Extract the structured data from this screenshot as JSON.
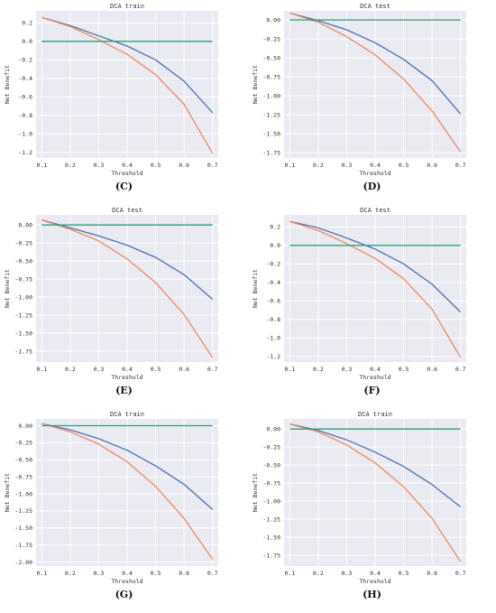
{
  "colors": {
    "bg": "#EAEAF2",
    "grid": "#FFFFFF",
    "model_a": "#4C72B0",
    "model_b": "#EE8A5E",
    "none": "#2CA078",
    "text": "#333333"
  },
  "panels": [
    {
      "label": "(C)"
    },
    {
      "label": "(D)"
    },
    {
      "label": "(E)"
    },
    {
      "label": "(F)"
    },
    {
      "label": "(G)"
    },
    {
      "label": "(H)"
    }
  ],
  "chart_data": [
    {
      "type": "line",
      "title": "DCA train",
      "xlabel": "Threshold",
      "ylabel": "Net Benefit",
      "xlim": [
        0.08,
        0.72
      ],
      "ylim": [
        -1.26,
        0.33
      ],
      "grid": true,
      "xticks": [
        0.1,
        0.2,
        0.3,
        0.4,
        0.5,
        0.6,
        0.7
      ],
      "xtick_labels": [
        "0.1",
        "0.2",
        "0.3",
        "0.4",
        "0.5",
        "0.6",
        "0.7"
      ],
      "yticks": [
        0.2,
        0.0,
        -0.2,
        -0.4,
        -0.6,
        -0.8,
        -1.0,
        -1.2
      ],
      "ytick_labels": [
        "0.2",
        "0.0",
        "-0.2",
        "-0.4",
        "-0.6",
        "-0.8",
        "-1.0",
        "-1.2"
      ],
      "x": [
        0.1,
        0.2,
        0.3,
        0.4,
        0.5,
        0.6,
        0.7
      ],
      "series": [
        {
          "values": [
            0.26,
            0.17,
            0.06,
            -0.05,
            -0.2,
            -0.43,
            -0.77
          ]
        },
        {
          "values": [
            0.26,
            0.16,
            0.02,
            -0.14,
            -0.36,
            -0.68,
            -1.21
          ]
        },
        {
          "values": [
            0.0,
            0.0,
            0.0,
            0.0,
            0.0,
            0.0,
            0.0
          ]
        }
      ]
    },
    {
      "type": "line",
      "title": "DCA test",
      "xlabel": "Threshold",
      "ylabel": "Net Benefit",
      "xlim": [
        0.08,
        0.72
      ],
      "ylim": [
        -1.82,
        0.12
      ],
      "grid": true,
      "xticks": [
        0.1,
        0.2,
        0.3,
        0.4,
        0.5,
        0.6,
        0.7
      ],
      "xtick_labels": [
        "0.1",
        "0.2",
        "0.3",
        "0.4",
        "0.5",
        "0.6",
        "0.7"
      ],
      "yticks": [
        0.0,
        -0.25,
        -0.5,
        -0.75,
        -1.0,
        -1.25,
        -1.5,
        -1.75
      ],
      "ytick_labels": [
        "0.00",
        "-0.25",
        "-0.50",
        "-0.75",
        "-1.00",
        "-1.25",
        "-1.50",
        "-1.75"
      ],
      "x": [
        0.1,
        0.2,
        0.3,
        0.4,
        0.5,
        0.6,
        0.7
      ],
      "series": [
        {
          "values": [
            0.09,
            -0.01,
            -0.13,
            -0.3,
            -0.52,
            -0.8,
            -1.24
          ]
        },
        {
          "values": [
            0.09,
            -0.03,
            -0.22,
            -0.46,
            -0.78,
            -1.2,
            -1.74
          ]
        },
        {
          "values": [
            0.0,
            0.0,
            0.0,
            0.0,
            0.0,
            0.0,
            0.0
          ]
        }
      ]
    },
    {
      "type": "line",
      "title": "DCA test",
      "xlabel": "Threshold",
      "ylabel": "Net Benefit",
      "xlim": [
        0.08,
        0.72
      ],
      "ylim": [
        -1.9,
        0.14
      ],
      "grid": true,
      "xticks": [
        0.1,
        0.2,
        0.3,
        0.4,
        0.5,
        0.6,
        0.7
      ],
      "xtick_labels": [
        "0.1",
        "0.2",
        "0.3",
        "0.4",
        "0.5",
        "0.6",
        "0.7"
      ],
      "yticks": [
        0.0,
        -0.25,
        -0.5,
        -0.75,
        -1.0,
        -1.25,
        -1.5,
        -1.75
      ],
      "ytick_labels": [
        "0.00",
        "-0.25",
        "-0.50",
        "-0.75",
        "-1.00",
        "-1.25",
        "-1.50",
        "-1.75"
      ],
      "x": [
        0.1,
        0.2,
        0.3,
        0.4,
        0.5,
        0.6,
        0.7
      ],
      "series": [
        {
          "values": [
            0.07,
            -0.04,
            -0.15,
            -0.28,
            -0.45,
            -0.69,
            -1.03
          ]
        },
        {
          "values": [
            0.07,
            -0.06,
            -0.22,
            -0.47,
            -0.8,
            -1.24,
            -1.84
          ]
        },
        {
          "values": [
            0.0,
            0.0,
            0.0,
            0.0,
            0.0,
            0.0,
            0.0
          ]
        }
      ]
    },
    {
      "type": "line",
      "title": "DCA test",
      "xlabel": "Threshold",
      "ylabel": "Net Benefit",
      "xlim": [
        0.08,
        0.72
      ],
      "ylim": [
        -1.26,
        0.33
      ],
      "grid": true,
      "xticks": [
        0.1,
        0.2,
        0.3,
        0.4,
        0.5,
        0.6,
        0.7
      ],
      "xtick_labels": [
        "0.1",
        "0.2",
        "0.3",
        "0.4",
        "0.5",
        "0.6",
        "0.7"
      ],
      "yticks": [
        0.2,
        0.0,
        -0.2,
        -0.4,
        -0.6,
        -0.8,
        -1.0,
        -1.2
      ],
      "ytick_labels": [
        "0.2",
        "0.0",
        "-0.2",
        "-0.4",
        "-0.6",
        "-0.8",
        "-1.0",
        "-1.2"
      ],
      "x": [
        0.1,
        0.2,
        0.3,
        0.4,
        0.5,
        0.6,
        0.7
      ],
      "series": [
        {
          "values": [
            0.26,
            0.19,
            0.08,
            -0.04,
            -0.2,
            -0.42,
            -0.72
          ]
        },
        {
          "values": [
            0.26,
            0.16,
            0.02,
            -0.14,
            -0.36,
            -0.69,
            -1.21
          ]
        },
        {
          "values": [
            0.0,
            0.0,
            0.0,
            0.0,
            0.0,
            0.0,
            0.0
          ]
        }
      ]
    },
    {
      "type": "line",
      "title": "DCA train",
      "xlabel": "Threshold",
      "ylabel": "Net Benefit",
      "xlim": [
        0.08,
        0.72
      ],
      "ylim": [
        -2.06,
        0.1
      ],
      "grid": true,
      "xticks": [
        0.1,
        0.2,
        0.3,
        0.4,
        0.5,
        0.6,
        0.7
      ],
      "xtick_labels": [
        "0.1",
        "0.2",
        "0.3",
        "0.4",
        "0.5",
        "0.6",
        "0.7"
      ],
      "yticks": [
        0.0,
        -0.25,
        -0.5,
        -0.75,
        -1.0,
        -1.25,
        -1.5,
        -1.75,
        -2.0
      ],
      "ytick_labels": [
        "0.00",
        "-0.25",
        "-0.50",
        "-0.75",
        "-1.00",
        "-1.25",
        "-1.50",
        "-1.75",
        "-2.00"
      ],
      "x": [
        0.1,
        0.2,
        0.3,
        0.4,
        0.5,
        0.6,
        0.7
      ],
      "series": [
        {
          "values": [
            0.03,
            -0.06,
            -0.19,
            -0.36,
            -0.59,
            -0.86,
            -1.23
          ]
        },
        {
          "values": [
            0.03,
            -0.09,
            -0.27,
            -0.53,
            -0.89,
            -1.36,
            -1.96
          ]
        },
        {
          "values": [
            0.0,
            0.0,
            0.0,
            0.0,
            0.0,
            0.0,
            0.0
          ]
        }
      ]
    },
    {
      "type": "line",
      "title": "DCA train",
      "xlabel": "Threshold",
      "ylabel": "Net Benefit",
      "xlim": [
        0.08,
        0.72
      ],
      "ylim": [
        -1.9,
        0.14
      ],
      "grid": true,
      "xticks": [
        0.1,
        0.2,
        0.3,
        0.4,
        0.5,
        0.6,
        0.7
      ],
      "xtick_labels": [
        "0.1",
        "0.2",
        "0.3",
        "0.4",
        "0.5",
        "0.6",
        "0.7"
      ],
      "yticks": [
        0.0,
        -0.25,
        -0.5,
        -0.75,
        -1.0,
        -1.25,
        -1.5,
        -1.75
      ],
      "ytick_labels": [
        "0.00",
        "-0.25",
        "-0.50",
        "-0.75",
        "-1.00",
        "-1.25",
        "-1.50",
        "-1.75"
      ],
      "x": [
        0.1,
        0.2,
        0.3,
        0.4,
        0.5,
        0.6,
        0.7
      ],
      "series": [
        {
          "values": [
            0.07,
            -0.02,
            -0.15,
            -0.32,
            -0.52,
            -0.77,
            -1.08
          ]
        },
        {
          "values": [
            0.07,
            -0.04,
            -0.22,
            -0.47,
            -0.8,
            -1.24,
            -1.84
          ]
        },
        {
          "values": [
            0.0,
            0.0,
            0.0,
            0.0,
            0.0,
            0.0,
            0.0
          ]
        }
      ]
    }
  ]
}
